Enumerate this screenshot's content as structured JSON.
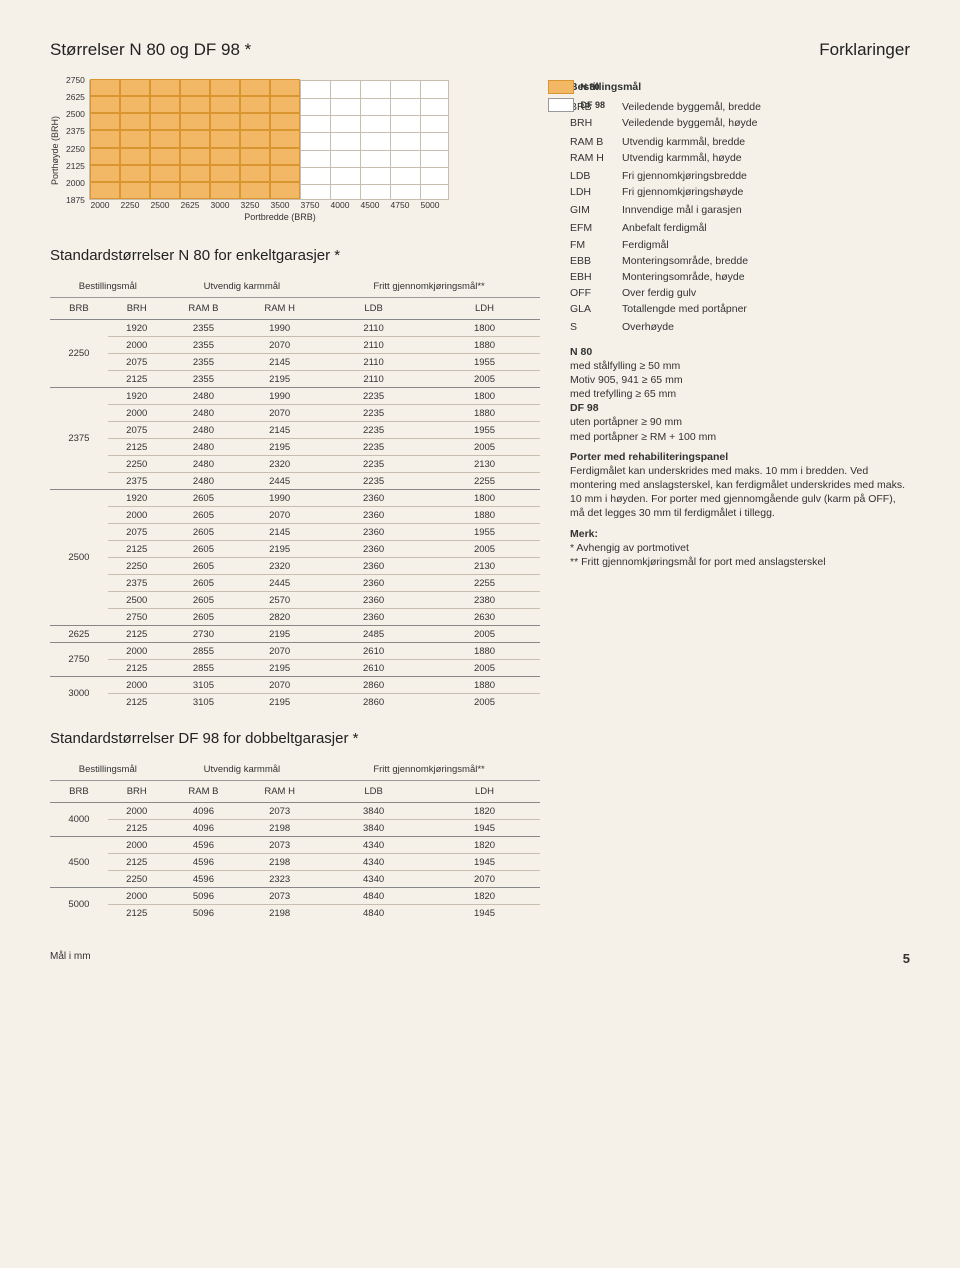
{
  "titles": {
    "left": "Størrelser N 80 og DF 98 *",
    "right": "Forklaringer",
    "table1": "Standardstørrelser N 80 for enkeltgarasjer *",
    "table2": "Standardstørrelser DF 98 for dobbeltgarasjer *"
  },
  "chart": {
    "type": "bar-grid",
    "ylabel": "Porthøyde (BRH)",
    "xlabel": "Portbredde (BRB)",
    "yticks": [
      "2750",
      "2625",
      "2500",
      "2375",
      "2250",
      "2125",
      "2000",
      "1875"
    ],
    "xticks": [
      "2000",
      "2250",
      "2500",
      "2625",
      "3000",
      "3250",
      "3500",
      "3750",
      "4000",
      "4500",
      "4750",
      "5000"
    ],
    "cell_fill": "#f3b866",
    "cell_border": "#d89530",
    "grid_color": "#c7beb0",
    "bg": "#ffffff",
    "n80_span_cols": 7,
    "n80_span_rows": 7,
    "legend": [
      {
        "label": "N 80",
        "color": "#f3b866",
        "border": "#d89530"
      },
      {
        "label": "DF 98",
        "color": "#ffffff",
        "border": "#999999"
      }
    ]
  },
  "tableHeaders": {
    "group1": "Bestillingsmål",
    "group2": "Utvendig karmmål",
    "group3": "Fritt gjennomkjøringsmål**",
    "cols": [
      "BRB",
      "BRH",
      "RAM B",
      "RAM H",
      "LDB",
      "LDH"
    ]
  },
  "table1": [
    {
      "brb": "2250",
      "rows": [
        [
          "1920",
          "2355",
          "1990",
          "2110",
          "1800"
        ],
        [
          "2000",
          "2355",
          "2070",
          "2110",
          "1880"
        ],
        [
          "2075",
          "2355",
          "2145",
          "2110",
          "1955"
        ],
        [
          "2125",
          "2355",
          "2195",
          "2110",
          "2005"
        ]
      ]
    },
    {
      "brb": "2375",
      "rows": [
        [
          "1920",
          "2480",
          "1990",
          "2235",
          "1800"
        ],
        [
          "2000",
          "2480",
          "2070",
          "2235",
          "1880"
        ],
        [
          "2075",
          "2480",
          "2145",
          "2235",
          "1955"
        ],
        [
          "2125",
          "2480",
          "2195",
          "2235",
          "2005"
        ],
        [
          "2250",
          "2480",
          "2320",
          "2235",
          "2130"
        ],
        [
          "2375",
          "2480",
          "2445",
          "2235",
          "2255"
        ]
      ]
    },
    {
      "brb": "2500",
      "rows": [
        [
          "1920",
          "2605",
          "1990",
          "2360",
          "1800"
        ],
        [
          "2000",
          "2605",
          "2070",
          "2360",
          "1880"
        ],
        [
          "2075",
          "2605",
          "2145",
          "2360",
          "1955"
        ],
        [
          "2125",
          "2605",
          "2195",
          "2360",
          "2005"
        ],
        [
          "2250",
          "2605",
          "2320",
          "2360",
          "2130"
        ],
        [
          "2375",
          "2605",
          "2445",
          "2360",
          "2255"
        ],
        [
          "2500",
          "2605",
          "2570",
          "2360",
          "2380"
        ],
        [
          "2750",
          "2605",
          "2820",
          "2360",
          "2630"
        ]
      ]
    },
    {
      "brb": "2625",
      "rows": [
        [
          "2125",
          "2730",
          "2195",
          "2485",
          "2005"
        ]
      ]
    },
    {
      "brb": "2750",
      "rows": [
        [
          "2000",
          "2855",
          "2070",
          "2610",
          "1880"
        ],
        [
          "2125",
          "2855",
          "2195",
          "2610",
          "2005"
        ]
      ]
    },
    {
      "brb": "3000",
      "rows": [
        [
          "2000",
          "3105",
          "2070",
          "2860",
          "1880"
        ],
        [
          "2125",
          "3105",
          "2195",
          "2860",
          "2005"
        ]
      ]
    }
  ],
  "table2": [
    {
      "brb": "4000",
      "rows": [
        [
          "2000",
          "4096",
          "2073",
          "3840",
          "1820"
        ],
        [
          "2125",
          "4096",
          "2198",
          "3840",
          "1945"
        ]
      ]
    },
    {
      "brb": "4500",
      "rows": [
        [
          "2000",
          "4596",
          "2073",
          "4340",
          "1820"
        ],
        [
          "2125",
          "4596",
          "2198",
          "4340",
          "1945"
        ],
        [
          "2250",
          "4596",
          "2323",
          "4340",
          "2070"
        ]
      ]
    },
    {
      "brb": "5000",
      "rows": [
        [
          "2000",
          "5096",
          "2073",
          "4840",
          "1820"
        ],
        [
          "2125",
          "5096",
          "2198",
          "4840",
          "1945"
        ]
      ]
    }
  ],
  "defs": {
    "title": "Bestillingsmål",
    "items": [
      [
        "BRB",
        "Veiledende byggemål, bredde"
      ],
      [
        "BRH",
        "Veiledende byggemål, høyde"
      ],
      [
        "",
        ""
      ],
      [
        "RAM B",
        "Utvendig karmmål, bredde"
      ],
      [
        "RAM H",
        "Utvendig karmmål, høyde"
      ],
      [
        "",
        ""
      ],
      [
        "LDB",
        "Fri gjennomkjøringsbredde"
      ],
      [
        "LDH",
        "Fri gjennomkjøringshøyde"
      ],
      [
        "",
        ""
      ],
      [
        "GIM",
        "Innvendige mål i garasjen"
      ],
      [
        "",
        ""
      ],
      [
        "EFM",
        "Anbefalt ferdigmål"
      ],
      [
        "FM",
        "Ferdigmål"
      ],
      [
        "EBB",
        "Monteringsområde, bredde"
      ],
      [
        "EBH",
        "Monteringsområde, høyde"
      ],
      [
        "OFF",
        "Over ferdig gulv"
      ],
      [
        "GLA",
        "Totallengde med portåpner"
      ],
      [
        "",
        ""
      ],
      [
        "S",
        "Overhøyde"
      ]
    ]
  },
  "notes": {
    "n80_title": "N 80",
    "n80_1": "med stålfylling ≥ 50 mm",
    "n80_2": "Motiv 905, 941 ≥ 65 mm",
    "n80_3": "med trefylling ≥ 65 mm",
    "df98_title": "DF 98",
    "df98_1": "uten portåpner ≥ 90 mm",
    "df98_2": "med portåpner ≥ RM + 100 mm",
    "rehab_title": "Porter med rehabiliteringspanel",
    "rehab_body": "Ferdigmålet kan underskrides med maks. 10 mm i bredden. Ved montering med anslagsterskel, kan ferdigmålet underskrides med maks. 10 mm i høyden. For porter med gjennomgående gulv (karm på OFF), må det legges 30 mm til ferdigmålet i tillegg.",
    "merk_title": "Merk:",
    "merk_1": "* Avhengig av portmotivet",
    "merk_2": "** Fritt gjennomkjøringsmål for port med anslagsterskel"
  },
  "footer": {
    "left": "Mål i mm",
    "page": "5"
  }
}
